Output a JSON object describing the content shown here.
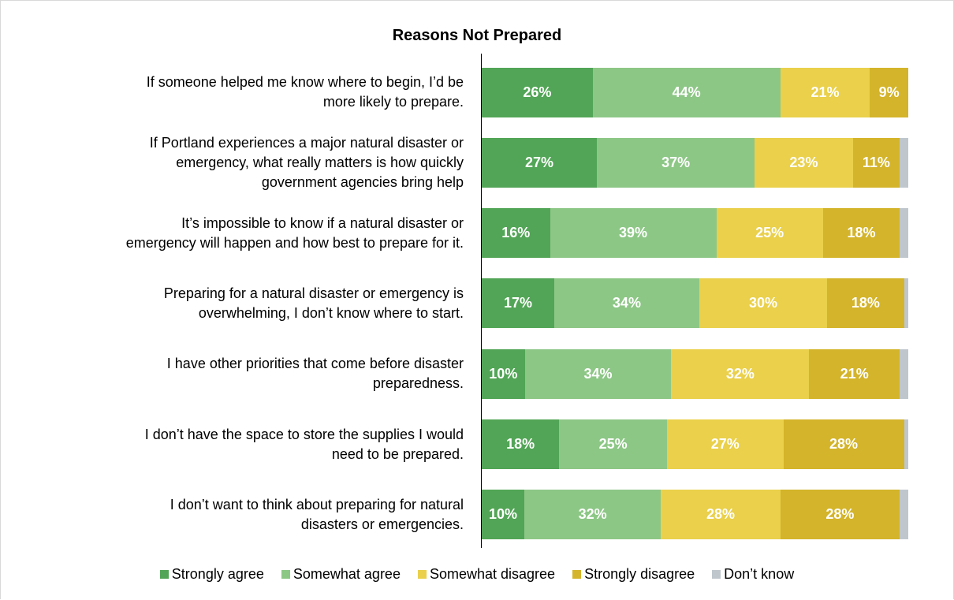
{
  "chart_data": {
    "type": "bar",
    "orientation": "horizontal",
    "stacked": true,
    "title": "Reasons Not Prepared",
    "categories": [
      "If someone helped me know where to begin, I’d be more likely to prepare.",
      "If Portland experiences a major natural disaster or emergency, what really matters is how quickly government agencies bring help",
      "It’s impossible to know if a natural disaster or emergency will happen and how best to prepare for it.",
      "Preparing for a natural disaster or emergency is overwhelming, I don’t know where to start.",
      "I have other priorities that come before disaster preparedness.",
      "I don’t have the space to store the supplies I would need to be prepared.",
      "I don’t want to think about preparing for natural disasters or emergencies."
    ],
    "category_lines": [
      [
        "If someone helped me know where to begin, I’d be",
        "more likely to prepare."
      ],
      [
        "If Portland experiences a major natural disaster or",
        "emergency, what really matters is how quickly",
        "government agencies bring help"
      ],
      [
        "It’s impossible to know if a natural disaster or",
        "emergency will happen and how best to prepare for it."
      ],
      [
        "Preparing for a natural disaster or emergency is",
        "overwhelming, I don’t know where to start."
      ],
      [
        "I have other priorities that come before disaster",
        "preparedness."
      ],
      [
        "I don’t have the space to store the supplies I would",
        "need to be prepared."
      ],
      [
        "I don’t want to think about preparing for natural",
        "disasters or emergencies."
      ]
    ],
    "series": [
      {
        "name": "Strongly agree",
        "color": "#52a556",
        "values": [
          26,
          27,
          16,
          17,
          10,
          18,
          10
        ]
      },
      {
        "name": "Somewhat agree",
        "color": "#8dc786",
        "values": [
          44,
          37,
          39,
          34,
          34,
          25,
          32
        ]
      },
      {
        "name": "Somewhat disagree",
        "color": "#ead04b",
        "values": [
          21,
          23,
          25,
          30,
          32,
          27,
          28
        ]
      },
      {
        "name": "Strongly disagree",
        "color": "#d4b42a",
        "values": [
          9,
          11,
          18,
          18,
          21,
          28,
          28
        ]
      },
      {
        "name": "Don’t know",
        "color": "#bfc7cd",
        "values": [
          0,
          2,
          2,
          1,
          2,
          1,
          2
        ]
      }
    ],
    "value_format": "{v}%",
    "xlim": [
      0,
      100
    ],
    "legend_position": "bottom",
    "grid": false
  }
}
